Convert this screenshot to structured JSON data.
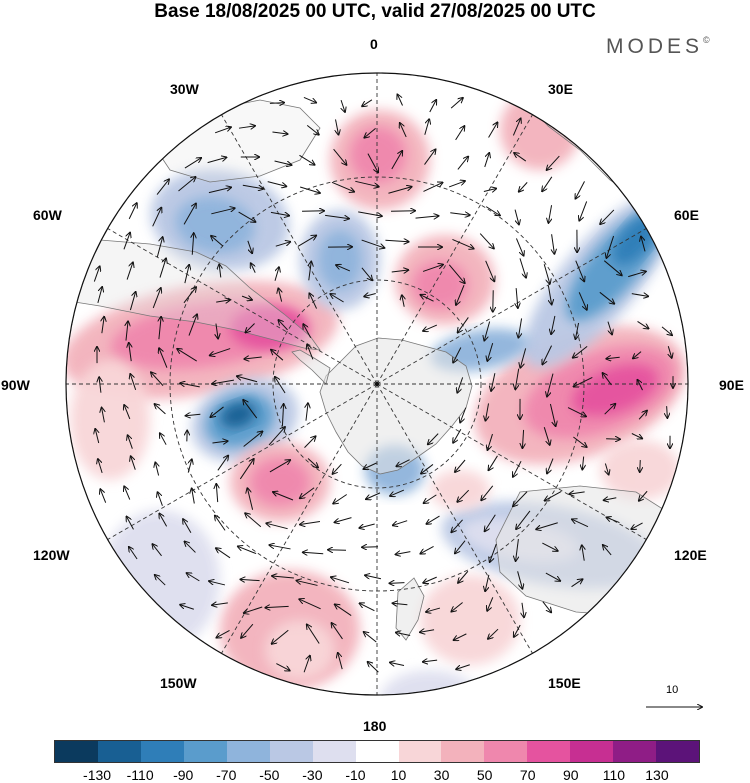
{
  "title": "Base 18/08/2025 00 UTC, valid 27/08/2025 00 UTC",
  "brand": "MODES",
  "brand_mark": "©",
  "longitude_labels": {
    "l0": "0",
    "l30e": "30E",
    "l60e": "60E",
    "l90e": "90E",
    "l120e": "120E",
    "l150e": "150E",
    "l180": "180",
    "l150w": "150W",
    "l120w": "120W",
    "l90w": "90W",
    "l60w": "60W",
    "l30w": "30W"
  },
  "reference_vector_label": "10",
  "colorbar": {
    "colors": [
      "#0b3a5e",
      "#185f93",
      "#2f7eb8",
      "#5a9ccc",
      "#8fb4dc",
      "#bac8e4",
      "#dedfef",
      "#ffffff",
      "#f8d6d8",
      "#f3b2bc",
      "#ef87ad",
      "#e5539f",
      "#c72f92",
      "#8f1d86",
      "#5c1379"
    ],
    "ticks": [
      "-130",
      "-110",
      "-90",
      "-70",
      "-50",
      "-30",
      "-10",
      "10",
      "30",
      "50",
      "70",
      "90",
      "110",
      "130"
    ]
  },
  "colors": {
    "land": "#e6e6e6",
    "grid": "#333333",
    "arrow": "#111111"
  }
}
